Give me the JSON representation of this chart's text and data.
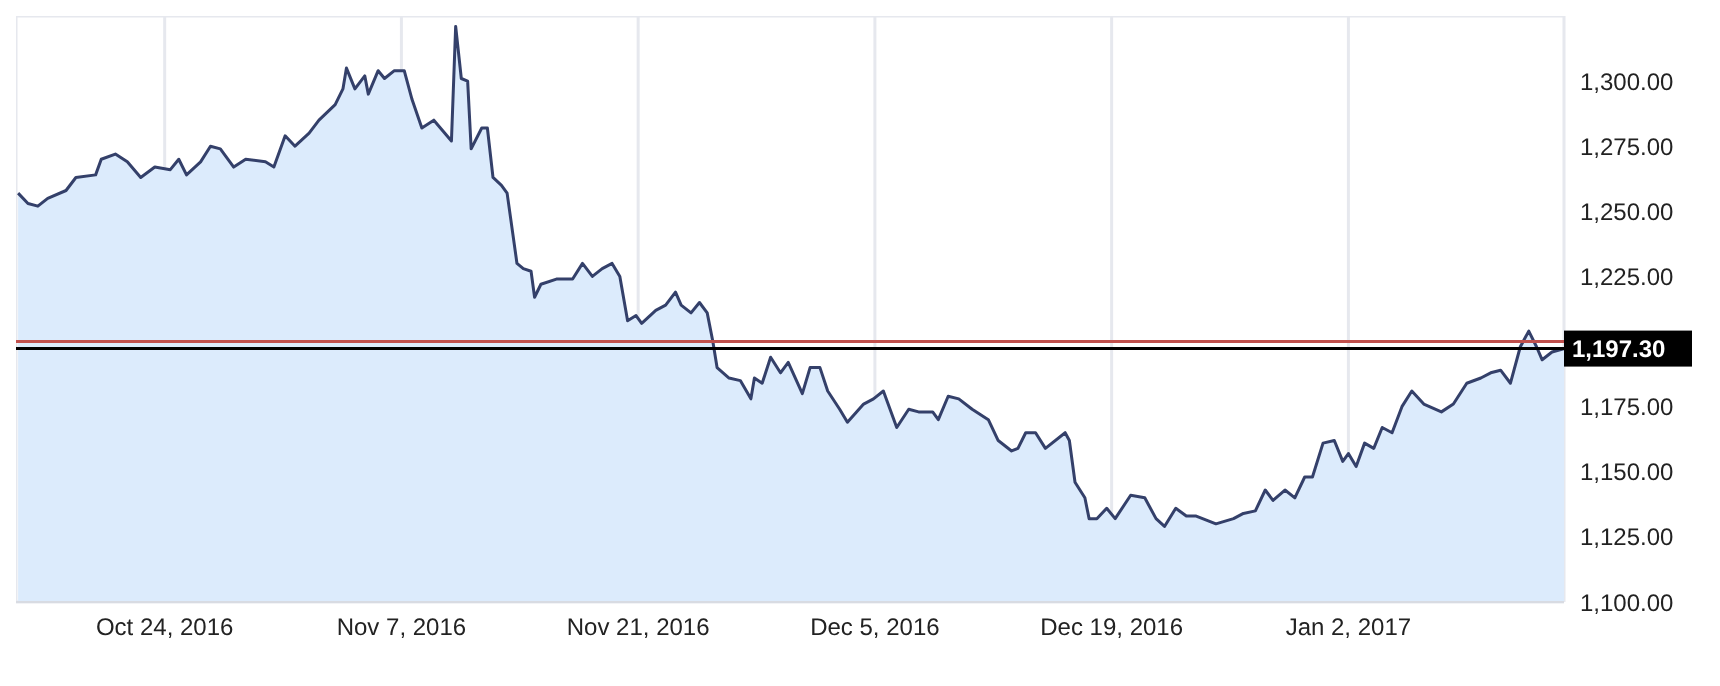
{
  "chart_data": {
    "type": "area",
    "x": [
      "2016-10-15T08:00",
      "2016-10-15T22:00",
      "2016-10-16T12:00",
      "2016-10-17T02:00",
      "2016-10-18T04:00",
      "2016-10-18T18:00",
      "2016-10-19T22:00",
      "2016-10-20T06:00",
      "2016-10-21T02:00",
      "2016-10-21T19:00",
      "2016-10-22T14:00",
      "2016-10-23T10:00",
      "2016-10-24T08:00",
      "2016-10-24T20:00",
      "2016-10-25T07:00",
      "2016-10-26T03:00",
      "2016-10-26T17:00",
      "2016-10-27T07:00",
      "2016-10-28T02:00",
      "2016-10-28T19:00",
      "2016-10-29T23:00",
      "2016-10-30T11:00",
      "2016-10-31T03:00",
      "2016-10-31T17:00",
      "2016-11-01T13:00",
      "2016-11-02T03:00",
      "2016-11-03T02:00",
      "2016-11-03T13:00",
      "2016-11-03T18:00",
      "2016-11-04T06:00",
      "2016-11-04T20:00",
      "2016-11-05T01:00",
      "2016-11-05T15:00",
      "2016-11-06T00:00",
      "2016-11-06T14:00",
      "2016-11-07T04:00",
      "2016-11-07T15:00",
      "2016-11-08T05:00",
      "2016-11-08T22:00",
      "2016-11-09T23:00",
      "2016-11-10T05:00",
      "2016-11-10T13:00",
      "2016-11-10T22:00",
      "2016-11-11T03:00",
      "2016-11-11T18:00",
      "2016-11-12T02:00",
      "2016-11-12T10:00",
      "2016-11-12T22:00",
      "2016-11-13T06:00",
      "2016-11-13T20:00",
      "2016-11-14T05:00",
      "2016-11-14T16:00",
      "2016-11-14T21:00",
      "2016-11-15T06:00",
      "2016-11-16T04:00",
      "2016-11-17T03:00",
      "2016-11-17T17:00",
      "2016-11-18T07:00",
      "2016-11-18T21:00",
      "2016-11-19T11:00",
      "2016-11-19T22:00",
      "2016-11-20T09:00",
      "2016-11-20T21:00",
      "2016-11-21T05:00",
      "2016-11-22T01:00",
      "2016-11-22T15:00",
      "2016-11-23T05:00",
      "2016-11-23T13:00",
      "2016-11-24T03:00",
      "2016-11-24T15:00",
      "2016-11-25T02:00",
      "2016-11-25T10:00",
      "2016-11-25T16:00",
      "2016-11-26T09:00",
      "2016-11-27T01:00",
      "2016-11-27T16:00",
      "2016-11-27T21:00",
      "2016-11-28T08:00",
      "2016-11-28T20:00",
      "2016-11-29T10:00",
      "2016-11-29T21:00",
      "2016-11-30T17:00",
      "2016-12-01T04:00",
      "2016-12-01T18:00",
      "2016-12-02T05:00",
      "2016-12-02T22:00",
      "2016-12-03T09:00",
      "2016-12-04T08:00",
      "2016-12-04T22:00",
      "2016-12-05T12:00",
      "2016-12-06T07:00",
      "2016-12-07T00:00",
      "2016-12-07T14:00",
      "2016-12-08T10:00",
      "2016-12-08T18:00",
      "2016-12-09T08:00",
      "2016-12-09T23:00",
      "2016-12-10T18:00",
      "2016-12-11T17:00",
      "2016-12-12T07:00",
      "2016-12-13T02:00",
      "2016-12-13T11:00",
      "2016-12-13T22:00",
      "2016-12-14T12:00",
      "2016-12-15T02:00",
      "2016-12-16T06:00",
      "2016-12-16T12:00",
      "2016-12-16T20:00",
      "2016-12-17T10:00",
      "2016-12-17T16:00",
      "2016-12-18T03:00",
      "2016-12-18T17:00",
      "2016-12-19T05:00",
      "2016-12-20T03:00",
      "2016-12-20T23:00",
      "2016-12-21T15:00",
      "2016-12-22T03:00",
      "2016-12-22T19:00",
      "2016-12-23T10:00",
      "2016-12-24T00:00",
      "2016-12-25T04:00",
      "2016-12-26T05:00",
      "2016-12-26T19:00",
      "2016-12-27T12:00",
      "2016-12-28T02:00",
      "2016-12-28T13:00",
      "2016-12-29T06:00",
      "2016-12-29T20:00",
      "2016-12-30T10:00",
      "2016-12-30T21:00",
      "2016-12-31T12:00",
      "2017-01-01T04:00",
      "2017-01-01T16:00",
      "2017-01-02T00:00",
      "2017-01-02T11:00",
      "2017-01-02T23:00",
      "2017-01-03T12:00",
      "2017-01-04T00:00",
      "2017-01-04T14:00",
      "2017-01-05T04:00",
      "2017-01-05T18:00",
      "2017-01-06T11:00",
      "2017-01-07T12:00",
      "2017-01-08T05:00",
      "2017-01-09T00:00",
      "2017-01-09T20:00",
      "2017-01-10T10:00",
      "2017-01-11T00:00",
      "2017-01-11T14:00",
      "2017-01-12T04:00",
      "2017-01-12T16:00",
      "2017-01-13T03:00",
      "2017-01-13T11:00",
      "2017-01-14T01:00",
      "2017-01-14T18:00"
    ],
    "series": [
      {
        "color": "#34406a",
        "values": [
          1257,
          1253,
          1252,
          1255,
          1258,
          1263,
          1264,
          1270,
          1272,
          1269,
          1263,
          1267,
          1266,
          1270,
          1264,
          1269,
          1275,
          1274,
          1267,
          1270,
          1269,
          1267,
          1279,
          1275,
          1280,
          1285,
          1291,
          1297,
          1305,
          1297,
          1302,
          1295,
          1304,
          1301,
          1304,
          1304,
          1293,
          1282,
          1285,
          1277,
          1321,
          1301,
          1300,
          1274,
          1282,
          1282,
          1263,
          1260,
          1257,
          1230,
          1228,
          1227,
          1217,
          1222,
          1224,
          1224,
          1230,
          1225,
          1228,
          1230,
          1225,
          1208,
          1210,
          1207,
          1212,
          1214,
          1219,
          1214,
          1211,
          1215,
          1211,
          1200,
          1190,
          1186,
          1185,
          1178,
          1186,
          1184,
          1194,
          1188,
          1192,
          1180,
          1190,
          1190,
          1181,
          1174,
          1169,
          1176,
          1178,
          1181,
          1167,
          1174,
          1173,
          1173,
          1170,
          1179,
          1178,
          1174,
          1170,
          1162,
          1158,
          1159,
          1165,
          1165,
          1159,
          1165,
          1162,
          1146,
          1140,
          1132,
          1132,
          1136,
          1132,
          1141,
          1140,
          1132,
          1129,
          1136,
          1133,
          1133,
          1130,
          1132,
          1134,
          1135,
          1143,
          1139,
          1143,
          1140,
          1148,
          1148,
          1161,
          1162,
          1154,
          1157,
          1152,
          1161,
          1159,
          1167,
          1165,
          1175,
          1181,
          1176,
          1173,
          1176,
          1184,
          1186,
          1188,
          1189,
          1184,
          1198,
          1204,
          1198,
          1193,
          1196,
          1197.3
        ]
      }
    ],
    "xlim": [
      "2016-10-15T05:00",
      "2017-01-14T18:00"
    ],
    "xticks": [
      {
        "value": "2016-10-24",
        "label": "Oct 24, 2016"
      },
      {
        "value": "2016-11-07",
        "label": "Nov 7, 2016"
      },
      {
        "value": "2016-11-21",
        "label": "Nov 21, 2016"
      },
      {
        "value": "2016-12-05",
        "label": "Dec 5, 2016"
      },
      {
        "value": "2016-12-19",
        "label": "Dec 19, 2016"
      },
      {
        "value": "2017-01-02",
        "label": "Jan 2, 2017"
      }
    ],
    "ylim": [
      1100,
      1325
    ],
    "yticks": [
      {
        "value": 1100,
        "label": "1,100.00"
      },
      {
        "value": 1125,
        "label": "1,125.00"
      },
      {
        "value": 1150,
        "label": "1,150.00"
      },
      {
        "value": 1175,
        "label": "1,175.00"
      },
      {
        "value": 1200,
        "label": null
      },
      {
        "value": 1225,
        "label": "1,225.00"
      },
      {
        "value": 1250,
        "label": "1,250.00"
      },
      {
        "value": 1275,
        "label": "1,275.00"
      },
      {
        "value": 1300,
        "label": "1,300.00"
      }
    ],
    "ref_lines": [
      {
        "axis": "y",
        "value": 1200,
        "color": "#c0504d"
      },
      {
        "axis": "y",
        "value": 1197.3,
        "label": "1,197.30",
        "color": "#000000"
      }
    ],
    "grid": true
  }
}
